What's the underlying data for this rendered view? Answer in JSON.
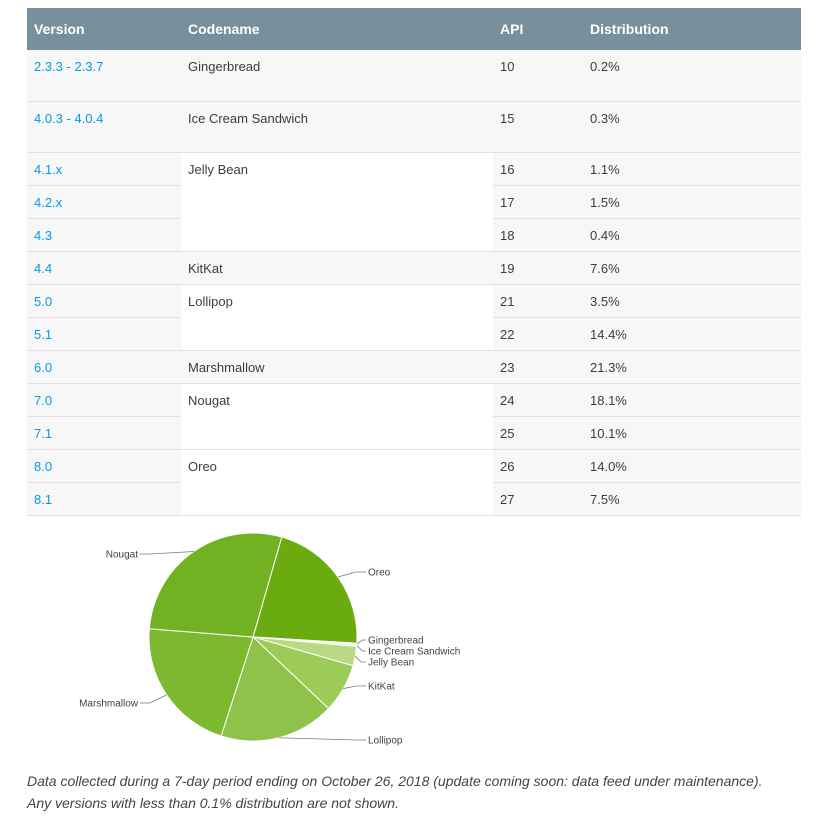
{
  "table": {
    "headers": [
      "Version",
      "Codename",
      "API",
      "Distribution"
    ],
    "rows": [
      {
        "version": "2.3.3 - 2.3.7",
        "codename": "Gingerbread",
        "api": "10",
        "dist": "0.2%"
      },
      {
        "version": "4.0.3 - 4.0.4",
        "codename": "Ice Cream Sandwich",
        "api": "15",
        "dist": "0.3%"
      },
      {
        "version": "4.1.x",
        "codename": "Jelly Bean",
        "api": "16",
        "dist": "1.1%"
      },
      {
        "version": "4.2.x",
        "codename": "",
        "api": "17",
        "dist": "1.5%"
      },
      {
        "version": "4.3",
        "codename": "",
        "api": "18",
        "dist": "0.4%"
      },
      {
        "version": "4.4",
        "codename": "KitKat",
        "api": "19",
        "dist": "7.6%"
      },
      {
        "version": "5.0",
        "codename": "Lollipop",
        "api": "21",
        "dist": "3.5%"
      },
      {
        "version": "5.1",
        "codename": "",
        "api": "22",
        "dist": "14.4%"
      },
      {
        "version": "6.0",
        "codename": "Marshmallow",
        "api": "23",
        "dist": "21.3%"
      },
      {
        "version": "7.0",
        "codename": "Nougat",
        "api": "24",
        "dist": "18.1%"
      },
      {
        "version": "7.1",
        "codename": "",
        "api": "25",
        "dist": "10.1%"
      },
      {
        "version": "8.0",
        "codename": "Oreo",
        "api": "26",
        "dist": "14.0%"
      },
      {
        "version": "8.1",
        "codename": "",
        "api": "27",
        "dist": "7.5%"
      }
    ]
  },
  "chart_data": {
    "type": "pie",
    "title": "",
    "slices": [
      {
        "name": "Oreo",
        "value": 21.5,
        "color": "#6aab0f"
      },
      {
        "name": "Gingerbread",
        "value": 0.2,
        "color": "#f3f7e9"
      },
      {
        "name": "Ice Cream Sandwich",
        "value": 0.3,
        "color": "#e5f0cf"
      },
      {
        "name": "Jelly Bean",
        "value": 3.0,
        "color": "#b9d985"
      },
      {
        "name": "KitKat",
        "value": 7.6,
        "color": "#9ccb57"
      },
      {
        "name": "Lollipop",
        "value": 17.9,
        "color": "#8fc24a"
      },
      {
        "name": "Marshmallow",
        "value": 21.3,
        "color": "#7db930"
      },
      {
        "name": "Nougat",
        "value": 28.2,
        "color": "#72b122"
      }
    ]
  },
  "caption": {
    "line1": "Data collected during a 7-day period ending on October 26, 2018 (update coming soon: data feed under maintenance).",
    "line2": "Any versions with less than 0.1% distribution are not shown."
  }
}
